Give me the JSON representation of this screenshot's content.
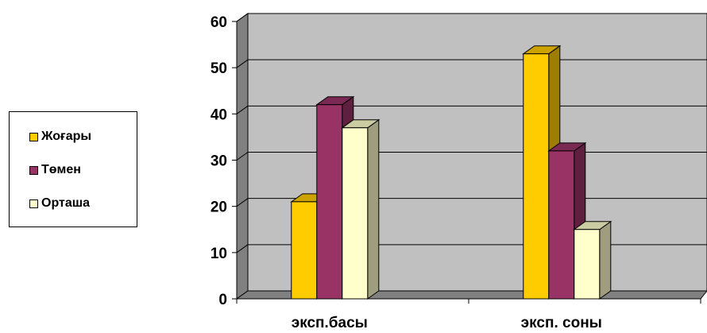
{
  "chart_data": {
    "type": "bar",
    "categories": [
      "эксп.басы",
      "эксп. соны"
    ],
    "series": [
      {
        "name": "Жоғары",
        "values": [
          21,
          53
        ],
        "color": "#FFCC00"
      },
      {
        "name": "Төмен",
        "values": [
          42,
          32
        ],
        "color": "#993366"
      },
      {
        "name": "Орташа",
        "values": [
          37,
          15
        ],
        "color": "#FFFFCC"
      }
    ],
    "ylim": [
      0,
      60
    ],
    "y_ticks": [
      "0",
      "10",
      "20",
      "30",
      "40",
      "50",
      "60"
    ],
    "grid": true,
    "style": "3d",
    "plot_background": "#C0C0C0",
    "legend_position": "left",
    "title": "",
    "xlabel": "",
    "ylabel": ""
  }
}
